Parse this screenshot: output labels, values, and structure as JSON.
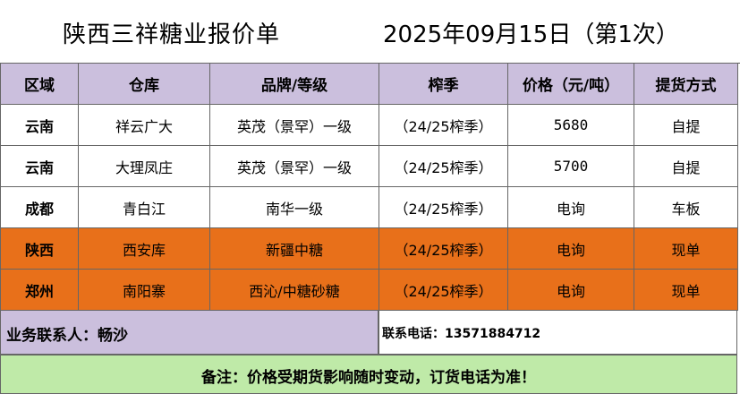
{
  "header": {
    "company_title": "陕西三祥糖业报价单",
    "date_title": "2025年09月15日（第1次）"
  },
  "table": {
    "columns": [
      "区域",
      "仓库",
      "品牌/等级",
      "榨季",
      "价格（元/吨）",
      "提货方式"
    ],
    "rows": [
      {
        "region": "云南",
        "warehouse": "祥云广大",
        "brand": "英茂（景罕）一级",
        "season": "（24/25榨季）",
        "price": "5680",
        "pickup": "自提",
        "highlight": false
      },
      {
        "region": "云南",
        "warehouse": "大理凤庄",
        "brand": "英茂（景罕）一级",
        "season": "（24/25榨季）",
        "price": "5700",
        "pickup": "自提",
        "highlight": false
      },
      {
        "region": "成都",
        "warehouse": "青白江",
        "brand": "南华一级",
        "season": "（24/25榨季）",
        "price": "电询",
        "pickup": "车板",
        "highlight": false
      },
      {
        "region": "陕西",
        "warehouse": "西安库",
        "brand": "新疆中糖",
        "season": "（24/25榨季）",
        "price": "电询",
        "pickup": "现单",
        "highlight": true
      },
      {
        "region": "郑州",
        "warehouse": "南阳寨",
        "brand": "西沁/中糖砂糖",
        "season": "（24/25榨季）",
        "price": "电询",
        "pickup": "现单",
        "highlight": true
      }
    ]
  },
  "contact": {
    "person": "业务联系人：畅沙",
    "phone": "联系电话：13571884712"
  },
  "note": "备注：价格受期货影响随时变动，订货电话为准！",
  "colors": {
    "header_bg": "#cbbfdd",
    "highlight_bg": "#e8701a",
    "note_bg": "#bfeaa8"
  }
}
